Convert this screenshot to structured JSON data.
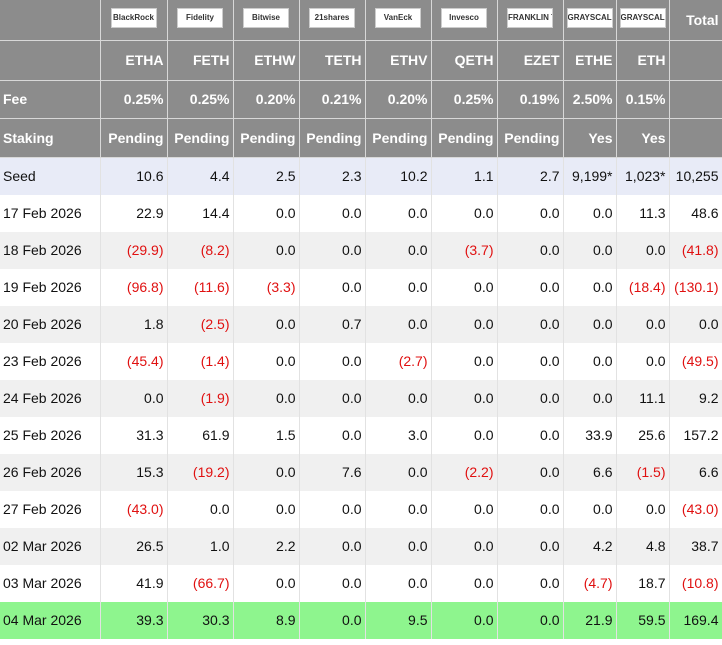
{
  "header": {
    "logos": [
      "BlackRock",
      "Fidelity",
      "Bitwise",
      "21shares",
      "VanEck",
      "Invesco",
      "FRANKLIN TEMPLETON",
      "GRAYSCALE",
      "GRAYSCALE"
    ],
    "total": "Total",
    "tickers": [
      "ETHA",
      "FETH",
      "ETHW",
      "TETH",
      "ETHV",
      "QETH",
      "EZET",
      "ETHE",
      "ETH"
    ],
    "fee": {
      "label": "Fee",
      "values": [
        "0.25%",
        "0.25%",
        "0.20%",
        "0.21%",
        "0.20%",
        "0.25%",
        "0.19%",
        "2.50%",
        "0.15%"
      ]
    },
    "staking": {
      "label": "Staking",
      "values": [
        "Pending",
        "Pending",
        "Pending",
        "Pending",
        "Pending",
        "Pending",
        "Pending",
        "Yes",
        "Yes"
      ]
    }
  },
  "rows": [
    {
      "label": "Seed",
      "cells": [
        "10.6",
        "4.4",
        "2.5",
        "2.3",
        "10.2",
        "1.1",
        "2.7",
        "9,199*",
        "1,023*",
        "10,255"
      ]
    },
    {
      "label": "17 Feb 2026",
      "cells": [
        "22.9",
        "14.4",
        "0.0",
        "0.0",
        "0.0",
        "0.0",
        "0.0",
        "0.0",
        "11.3",
        "48.6"
      ]
    },
    {
      "label": "18 Feb 2026",
      "cells": [
        "(29.9)",
        "(8.2)",
        "0.0",
        "0.0",
        "0.0",
        "(3.7)",
        "0.0",
        "0.0",
        "0.0",
        "(41.8)"
      ]
    },
    {
      "label": "19 Feb 2026",
      "cells": [
        "(96.8)",
        "(11.6)",
        "(3.3)",
        "0.0",
        "0.0",
        "0.0",
        "0.0",
        "0.0",
        "(18.4)",
        "(130.1)"
      ]
    },
    {
      "label": "20 Feb 2026",
      "cells": [
        "1.8",
        "(2.5)",
        "0.0",
        "0.7",
        "0.0",
        "0.0",
        "0.0",
        "0.0",
        "0.0",
        "0.0"
      ]
    },
    {
      "label": "23 Feb 2026",
      "cells": [
        "(45.4)",
        "(1.4)",
        "0.0",
        "0.0",
        "(2.7)",
        "0.0",
        "0.0",
        "0.0",
        "0.0",
        "(49.5)"
      ]
    },
    {
      "label": "24 Feb 2026",
      "cells": [
        "0.0",
        "(1.9)",
        "0.0",
        "0.0",
        "0.0",
        "0.0",
        "0.0",
        "0.0",
        "11.1",
        "9.2"
      ]
    },
    {
      "label": "25 Feb 2026",
      "cells": [
        "31.3",
        "61.9",
        "1.5",
        "0.0",
        "3.0",
        "0.0",
        "0.0",
        "33.9",
        "25.6",
        "157.2"
      ]
    },
    {
      "label": "26 Feb 2026",
      "cells": [
        "15.3",
        "(19.2)",
        "0.0",
        "7.6",
        "0.0",
        "(2.2)",
        "0.0",
        "6.6",
        "(1.5)",
        "6.6"
      ]
    },
    {
      "label": "27 Feb 2026",
      "cells": [
        "(43.0)",
        "0.0",
        "0.0",
        "0.0",
        "0.0",
        "0.0",
        "0.0",
        "0.0",
        "0.0",
        "(43.0)"
      ]
    },
    {
      "label": "02 Mar 2026",
      "cells": [
        "26.5",
        "1.0",
        "2.2",
        "0.0",
        "0.0",
        "0.0",
        "0.0",
        "4.2",
        "4.8",
        "38.7"
      ]
    },
    {
      "label": "03 Mar 2026",
      "cells": [
        "41.9",
        "(66.7)",
        "0.0",
        "0.0",
        "0.0",
        "0.0",
        "0.0",
        "(4.7)",
        "18.7",
        "(10.8)"
      ]
    },
    {
      "label": "04 Mar 2026",
      "cells": [
        "39.3",
        "30.3",
        "8.9",
        "0.0",
        "9.5",
        "0.0",
        "0.0",
        "21.9",
        "59.5",
        "169.4"
      ]
    }
  ]
}
